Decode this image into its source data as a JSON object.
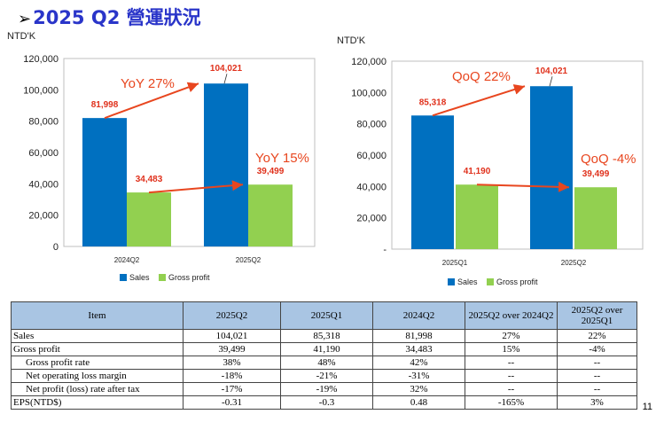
{
  "title": {
    "bullet": "➢",
    "text": "2025 Q2 營運狀況"
  },
  "colors": {
    "sales": "#0070c0",
    "gross_profit": "#92d050",
    "accent": "#e8461f",
    "title": "#2a35c9",
    "header_bg": "#a9c5e3"
  },
  "chart_data": [
    {
      "type": "bar",
      "unit": "NTD'K",
      "categories": [
        "2024Q2",
        "2025Q2"
      ],
      "series": [
        {
          "name": "Sales",
          "values": [
            81998,
            104021
          ],
          "labels": [
            "81,998",
            "104,021"
          ]
        },
        {
          "name": "Gross profit",
          "values": [
            34483,
            39499
          ],
          "labels": [
            "34,483",
            "39,499"
          ]
        }
      ],
      "ylim": [
        0,
        120000
      ],
      "yticks": [
        0,
        20000,
        40000,
        60000,
        80000,
        100000,
        120000
      ],
      "ytick_labels": [
        "0",
        "20,000",
        "40,000",
        "60,000",
        "80,000",
        "100,000",
        "120,000"
      ],
      "annotations": [
        "YoY 27%",
        "YoY 15%"
      ],
      "legend": "bottom"
    },
    {
      "type": "bar",
      "unit": "NTD'K",
      "categories": [
        "2025Q1",
        "2025Q2"
      ],
      "series": [
        {
          "name": "Sales",
          "values": [
            85318,
            104021
          ],
          "labels": [
            "85,318",
            "104,021"
          ]
        },
        {
          "name": "Gross profit",
          "values": [
            41190,
            39499
          ],
          "labels": [
            "41,190",
            "39,499"
          ]
        }
      ],
      "ylim": [
        0,
        120000
      ],
      "yticks": [
        0,
        20000,
        40000,
        60000,
        80000,
        100000,
        120000
      ],
      "ytick_labels": [
        "-",
        "20,000",
        "40,000",
        "60,000",
        "80,000",
        "100,000",
        "120,000"
      ],
      "annotations": [
        "QoQ 22%",
        "QoQ -4%"
      ],
      "legend": "bottom"
    }
  ],
  "table": {
    "headers": [
      "Item",
      "2025Q2",
      "2025Q1",
      "2024Q2",
      "2025Q2 over 2024Q2",
      "2025Q2 over 2025Q1"
    ],
    "rows": [
      {
        "cells": [
          "Sales",
          "104,021",
          "85,318",
          "81,998",
          "27%",
          "22%"
        ],
        "indent": false
      },
      {
        "cells": [
          "Gross profit",
          "39,499",
          "41,190",
          "34,483",
          "15%",
          "-4%"
        ],
        "indent": false
      },
      {
        "cells": [
          "Gross profit rate",
          "38%",
          "48%",
          "42%",
          "--",
          "--"
        ],
        "indent": true
      },
      {
        "cells": [
          "Net operating loss margin",
          "-18%",
          "-21%",
          "-31%",
          "--",
          "--"
        ],
        "indent": true
      },
      {
        "cells": [
          "Net profit (loss) rate after tax",
          "-17%",
          "-19%",
          "32%",
          "--",
          "--"
        ],
        "indent": true
      },
      {
        "cells": [
          "EPS(NTD$)",
          "-0.31",
          "-0.3",
          "0.48",
          "-165%",
          "3%"
        ],
        "indent": false
      }
    ]
  },
  "page_number": "11"
}
